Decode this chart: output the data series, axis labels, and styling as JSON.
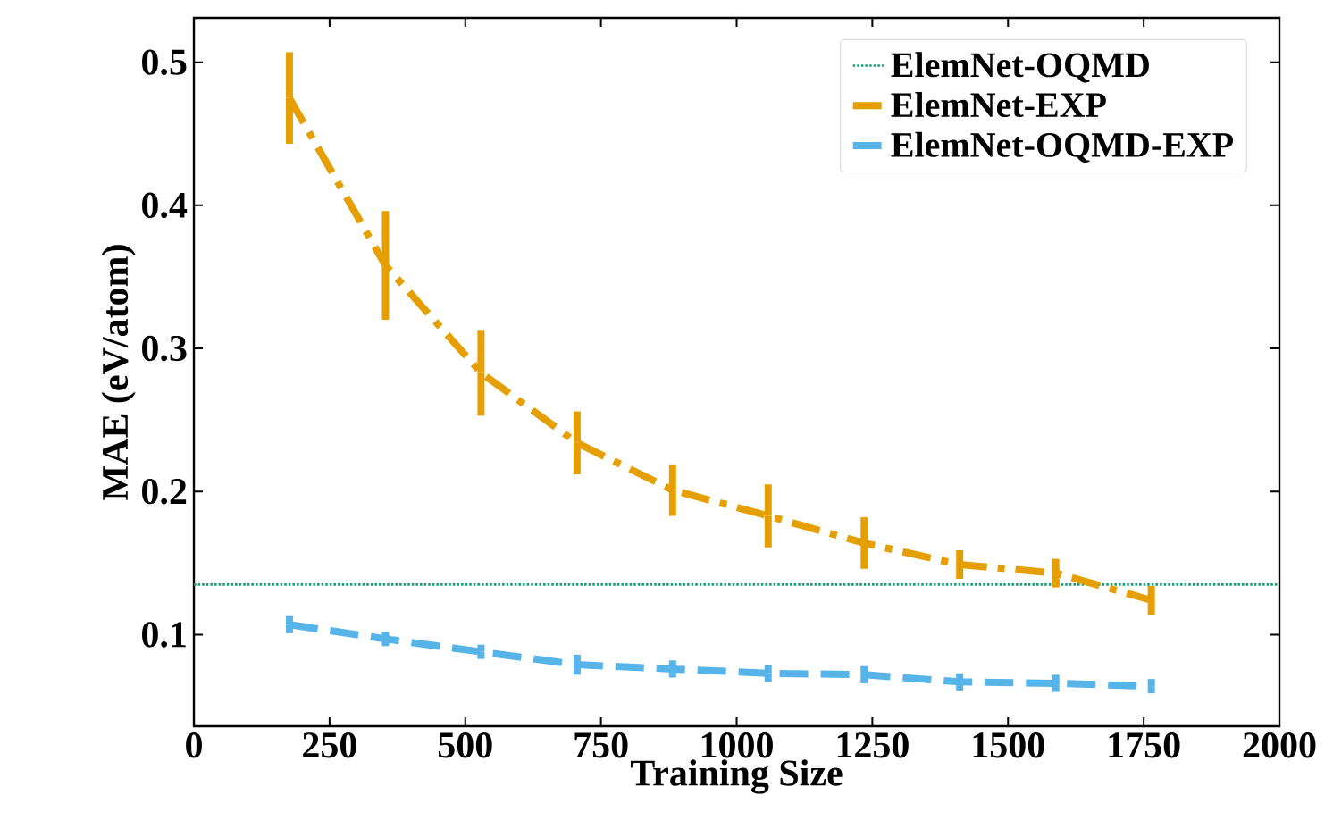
{
  "chart_data": {
    "type": "line",
    "xlabel": "Training Size",
    "ylabel": "MAE (eV/atom)",
    "xlim": [
      0,
      2000
    ],
    "ylim": [
      0.036,
      0.531
    ],
    "xticks": [
      0,
      250,
      500,
      750,
      1000,
      1250,
      1500,
      1750,
      2000
    ],
    "yticks": [
      0.1,
      0.2,
      0.3,
      0.4,
      0.5
    ],
    "x": [
      176,
      353,
      529,
      706,
      882,
      1058,
      1235,
      1411,
      1588,
      1764
    ],
    "legend": "top right",
    "marker": "none",
    "ref_lines": [
      {
        "axis": "y",
        "value": 0.135,
        "label": "ElemNet-OQMD",
        "color": "#1a9e77",
        "line_style": "dotted"
      }
    ],
    "series": [
      {
        "name": "ElemNet-EXP",
        "color": "#e69f00",
        "line_style": "dashdot",
        "values": [
          0.475,
          0.358,
          0.283,
          0.234,
          0.201,
          0.183,
          0.164,
          0.149,
          0.143,
          0.124
        ],
        "errors": [
          0.032,
          0.038,
          0.03,
          0.022,
          0.018,
          0.022,
          0.018,
          0.01,
          0.01,
          0.01
        ]
      },
      {
        "name": "ElemNet-OQMD-EXP",
        "color": "#56b4e9",
        "line_style": "dashed",
        "values": [
          0.107,
          0.097,
          0.088,
          0.079,
          0.076,
          0.073,
          0.072,
          0.067,
          0.066,
          0.064
        ],
        "errors": [
          0.006,
          0.005,
          0.005,
          0.007,
          0.006,
          0.006,
          0.006,
          0.006,
          0.006,
          0.005
        ]
      }
    ]
  }
}
